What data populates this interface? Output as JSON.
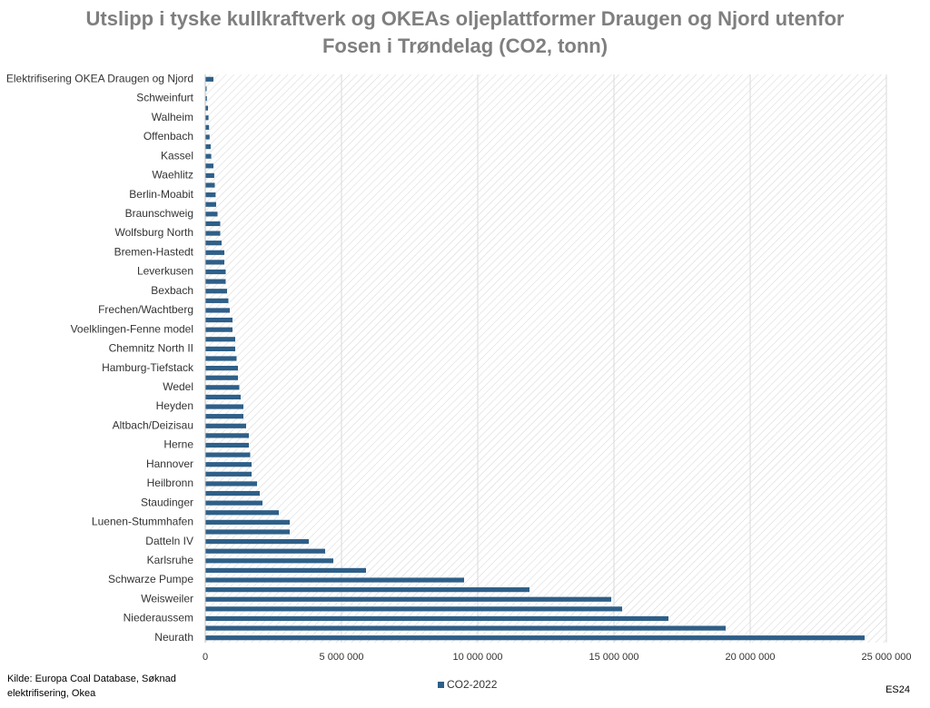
{
  "chart_data": {
    "type": "barh",
    "title": "Utslipp i tyske kullkraftverk og OKEAs oljeplattformer Draugen og Njord utenfor Fosen i Trøndelag (CO2, tonn)",
    "source": "Kilde: Europa Coal Database, Søknad elektrifisering, Okea",
    "tag": "ES24",
    "categories": [
      "Elektrifisering OKEA Draugen og Njord",
      null,
      "Schweinfurt",
      null,
      "Walheim",
      null,
      "Offenbach",
      null,
      "Kassel",
      null,
      "Waehlitz",
      null,
      "Berlin-Moabit",
      null,
      "Braunschweig",
      null,
      "Wolfsburg North",
      null,
      "Bremen-Hastedt",
      null,
      "Leverkusen",
      null,
      "Bexbach",
      null,
      "Frechen/Wachtberg",
      null,
      "Voelklingen-Fenne model",
      null,
      "Chemnitz North II",
      null,
      "Hamburg-Tiefstack",
      null,
      "Wedel",
      null,
      "Heyden",
      null,
      "Altbach/Deizisau",
      null,
      "Herne",
      null,
      "Hannover",
      null,
      "Heilbronn",
      null,
      "Staudinger",
      null,
      "Luenen-Stummhafen",
      null,
      "Datteln IV",
      null,
      "Karlsruhe",
      null,
      "Schwarze Pumpe",
      null,
      "Weisweiler",
      null,
      "Niederaussem",
      null,
      "Neurath"
    ],
    "series": [
      {
        "name": "CO2-2022",
        "color": "#2e5f88",
        "values": [
          300000,
          50000,
          60000,
          100000,
          120000,
          140000,
          160000,
          200000,
          220000,
          300000,
          330000,
          350000,
          380000,
          400000,
          450000,
          550000,
          550000,
          600000,
          700000,
          700000,
          750000,
          750000,
          800000,
          850000,
          900000,
          1000000,
          1000000,
          1100000,
          1100000,
          1150000,
          1200000,
          1200000,
          1250000,
          1300000,
          1400000,
          1400000,
          1500000,
          1600000,
          1600000,
          1650000,
          1700000,
          1700000,
          1900000,
          2000000,
          2100000,
          2700000,
          3100000,
          3100000,
          3800000,
          4400000,
          4700000,
          5900000,
          9500000,
          11900000,
          14900000,
          15300000,
          17000000,
          19100000,
          24200000
        ]
      }
    ],
    "xlim": [
      0,
      25000000
    ],
    "xticks": [
      0,
      {
        "value": 5000000,
        "label": "5 000 000"
      },
      {
        "value": 10000000,
        "label": "10 000 000"
      },
      {
        "value": 15000000,
        "label": "15 000 000"
      },
      {
        "value": 20000000,
        "label": "20 000 000"
      },
      {
        "value": 25000000,
        "label": "25 000 000"
      }
    ],
    "grid": true,
    "legend": "bottom"
  }
}
